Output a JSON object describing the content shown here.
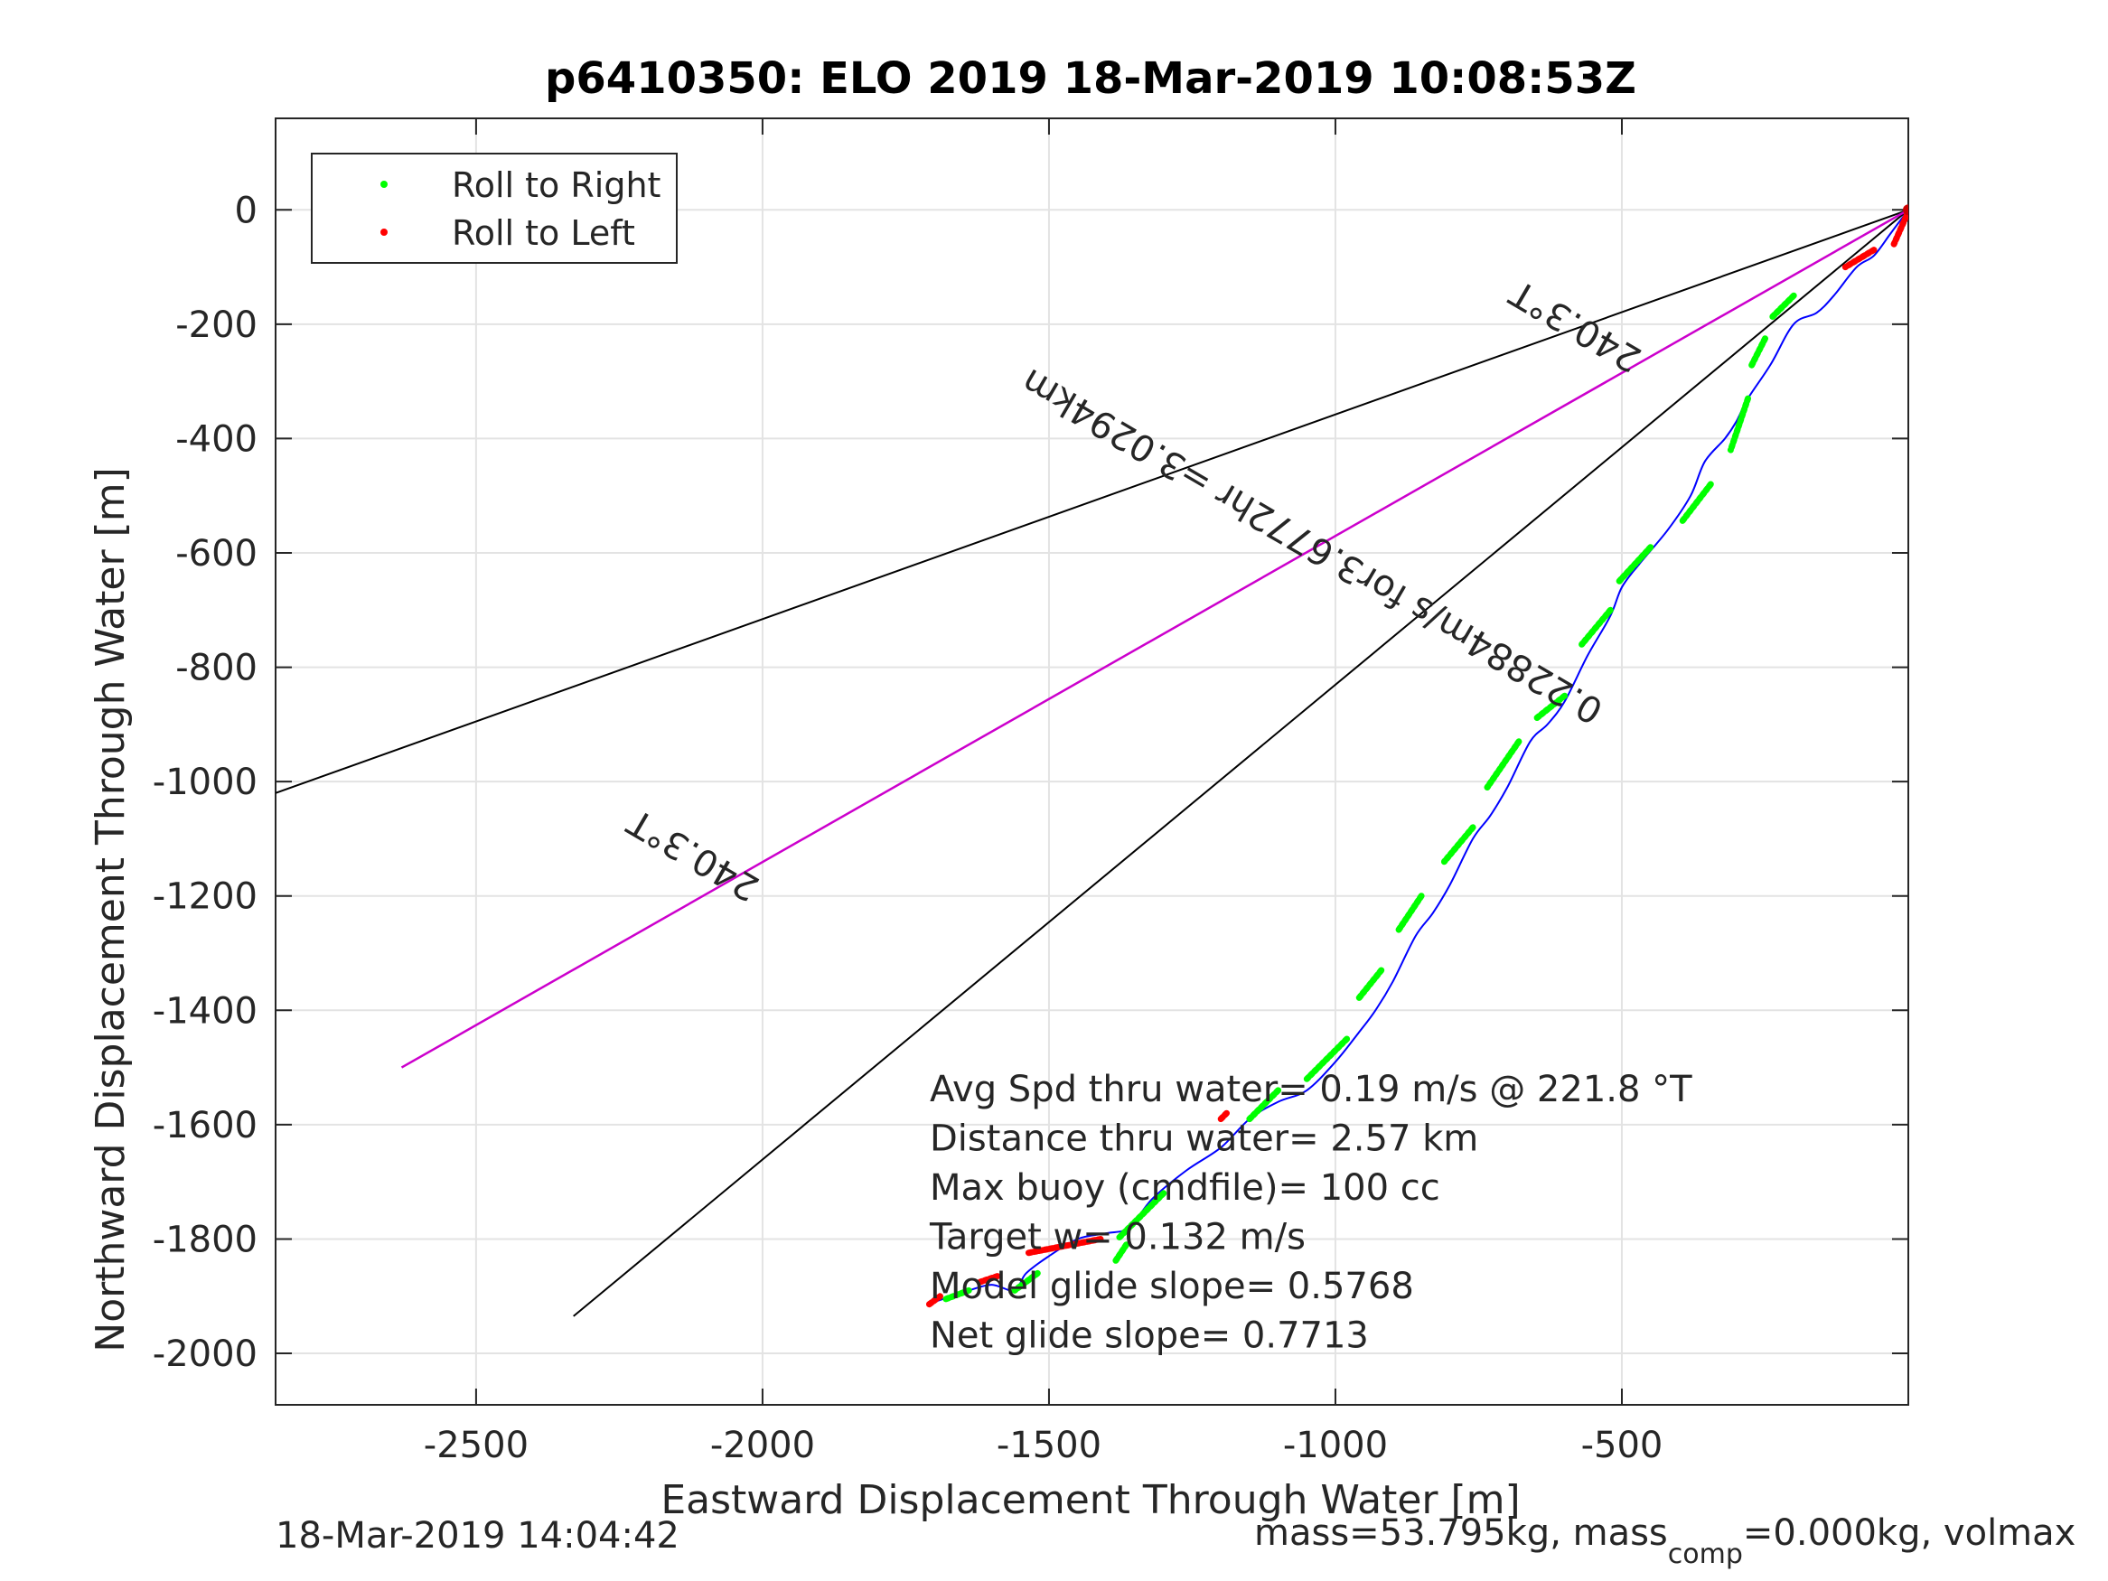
{
  "chart_data": {
    "type": "scatter",
    "title": "p6410350: ELO 2019 18-Mar-2019 10:08:53Z",
    "xlabel": "Eastward Displacement Through Water [m]",
    "ylabel": "Northward Displacement Through Water [m]",
    "xlim": [
      -2850,
      0
    ],
    "ylim": [
      -2090,
      160
    ],
    "xticks": [
      -2500,
      -2000,
      -1500,
      -1000,
      -500
    ],
    "yticks": [
      0,
      -200,
      -400,
      -600,
      -800,
      -1000,
      -1200,
      -1400,
      -1600,
      -1800,
      -2000
    ],
    "grid": true,
    "legend_position": "top-left",
    "legend": [
      {
        "label": "Roll to Right",
        "color": "#00ff00"
      },
      {
        "label": "Roll to Left",
        "color": "#ff0000"
      }
    ],
    "lines": [
      {
        "kind": "bearing-line",
        "color": "#000000",
        "x": [
          0,
          -2850
        ],
        "y": [
          0,
          -1020
        ]
      },
      {
        "kind": "bearing-line",
        "color": "#000000",
        "x": [
          0,
          -2330
        ],
        "y": [
          0,
          -1935
        ]
      },
      {
        "kind": "heading-line",
        "color": "#cc00cc",
        "x": [
          0,
          -2630
        ],
        "y": [
          0,
          -1500
        ]
      }
    ],
    "track": {
      "color": "#0000ff",
      "x": [
        0,
        -30,
        -60,
        -90,
        -130,
        -160,
        -200,
        -240,
        -280,
        -300,
        -320,
        -355,
        -380,
        -420,
        -470,
        -500,
        -520,
        -560,
        -600,
        -630,
        -660,
        -700,
        -730,
        -760,
        -800,
        -830,
        -860,
        -900,
        -930,
        -960,
        -1000,
        -1050,
        -1100,
        -1150,
        -1200,
        -1260,
        -1320,
        -1360,
        -1400,
        -1450,
        -1500,
        -1540,
        -1560,
        -1600,
        -1640,
        -1670,
        -1700
      ],
      "y": [
        0,
        -40,
        -80,
        -100,
        -150,
        -180,
        -200,
        -270,
        -330,
        -370,
        -400,
        -440,
        -500,
        -560,
        -620,
        -660,
        -710,
        -780,
        -860,
        -900,
        -930,
        -1010,
        -1060,
        -1100,
        -1180,
        -1230,
        -1270,
        -1350,
        -1400,
        -1440,
        -1490,
        -1540,
        -1560,
        -1590,
        -1640,
        -1680,
        -1730,
        -1780,
        -1790,
        -1800,
        -1830,
        -1860,
        -1890,
        -1880,
        -1890,
        -1900,
        -1910
      ]
    },
    "roll_right_segments": [
      {
        "x": [
          -200,
          -240
        ],
        "y": [
          -150,
          -190
        ]
      },
      {
        "x": [
          -250,
          -275
        ],
        "y": [
          -225,
          -275
        ]
      },
      {
        "x": [
          -280,
          -310
        ],
        "y": [
          -330,
          -420
        ]
      },
      {
        "x": [
          -345,
          -395
        ],
        "y": [
          -480,
          -545
        ]
      },
      {
        "x": [
          -450,
          -505
        ],
        "y": [
          -590,
          -650
        ]
      },
      {
        "x": [
          -520,
          -570
        ],
        "y": [
          -700,
          -760
        ]
      },
      {
        "x": [
          -600,
          -650
        ],
        "y": [
          -850,
          -890
        ]
      },
      {
        "x": [
          -680,
          -735
        ],
        "y": [
          -930,
          -1010
        ]
      },
      {
        "x": [
          -760,
          -810
        ],
        "y": [
          -1080,
          -1140
        ]
      },
      {
        "x": [
          -850,
          -890
        ],
        "y": [
          -1200,
          -1260
        ]
      },
      {
        "x": [
          -920,
          -960
        ],
        "y": [
          -1330,
          -1380
        ]
      },
      {
        "x": [
          -980,
          -1050
        ],
        "y": [
          -1450,
          -1520
        ]
      },
      {
        "x": [
          -1100,
          -1150
        ],
        "y": [
          -1540,
          -1590
        ]
      },
      {
        "x": [
          -1300,
          -1380
        ],
        "y": [
          -1720,
          -1800
        ]
      },
      {
        "x": [
          -1365,
          -1385
        ],
        "y": [
          -1810,
          -1840
        ]
      },
      {
        "x": [
          -1520,
          -1560
        ],
        "y": [
          -1860,
          -1890
        ]
      },
      {
        "x": [
          -1640,
          -1680
        ],
        "y": [
          -1890,
          -1905
        ]
      }
    ],
    "roll_left_segments": [
      {
        "x": [
          -1,
          -25
        ],
        "y": [
          -5,
          -60
        ]
      },
      {
        "x": [
          -60,
          -110
        ],
        "y": [
          -70,
          -100
        ]
      },
      {
        "x": [
          -1190,
          -1200
        ],
        "y": [
          -1580,
          -1590
        ]
      },
      {
        "x": [
          -1410,
          -1540
        ],
        "y": [
          -1800,
          -1825
        ]
      },
      {
        "x": [
          -1590,
          -1620
        ],
        "y": [
          -1865,
          -1875
        ]
      },
      {
        "x": [
          -1690,
          -1710
        ],
        "y": [
          -1900,
          -1915
        ]
      }
    ],
    "annotations": [
      {
        "text": "240.3°T",
        "x": -2110,
        "y": -1110,
        "rotate": 210.3
      },
      {
        "text": "240.3°T",
        "x": -570,
        "y": -185,
        "rotate": 210.3
      },
      {
        "text": "0.22884m/s for3.6772hr =3.0294km",
        "x": -1030,
        "y": -570,
        "rotate": 210.3
      }
    ],
    "stats": [
      "Avg Spd thru water=  0.19 m/s @ 221.8 °T",
      "Distance thru water=  2.57 km",
      "Max buoy (cmdfile)= 100 cc",
      "Target w= 0.132 m/s",
      "Model glide slope= 0.5768",
      "Net glide slope= 0.7713"
    ],
    "footer_left": "18-Mar-2019 14:04:42",
    "footer_right_prefix": "mass=53.795kg, mass",
    "footer_right_subscript": "comp",
    "footer_right_suffix": "=0.000kg, volmax"
  }
}
